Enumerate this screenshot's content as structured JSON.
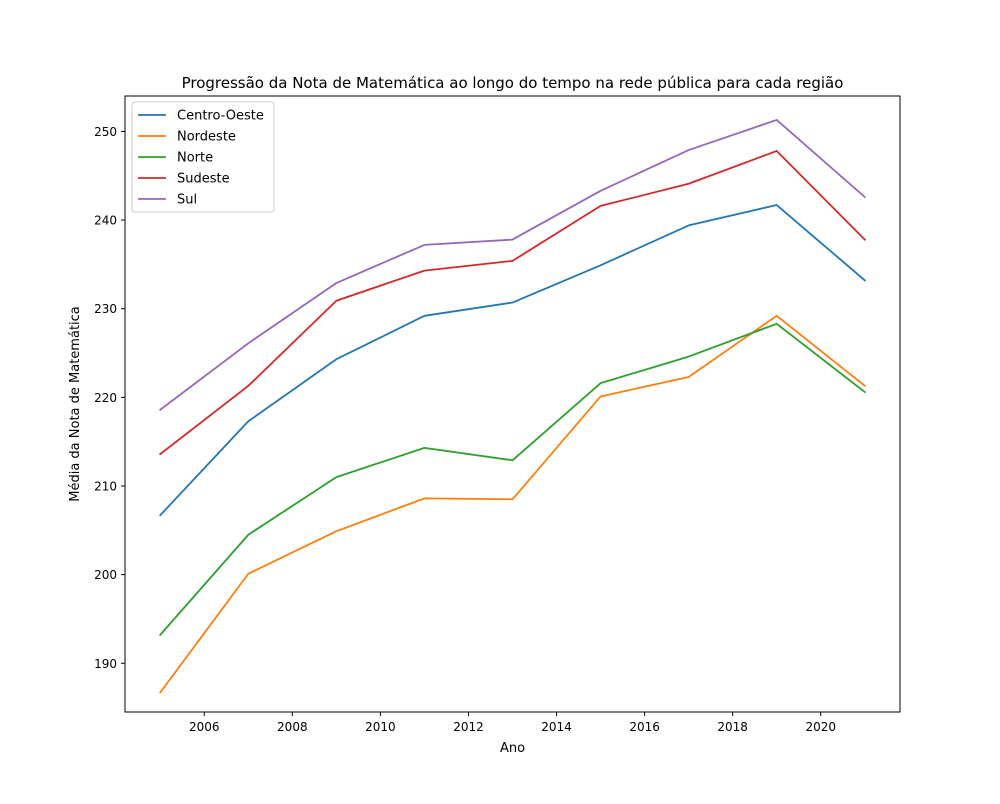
{
  "chart_data": {
    "type": "line",
    "title": "Progressão da Nota de Matemática ao longo do tempo na rede pública para cada região",
    "xlabel": "Ano",
    "ylabel": "Média da Nota de Matemática",
    "xlim": [
      2004.2,
      2021.8
    ],
    "ylim": [
      184.5,
      254.0
    ],
    "x_ticks": [
      2006,
      2008,
      2010,
      2012,
      2014,
      2016,
      2018,
      2020
    ],
    "y_ticks": [
      190,
      200,
      210,
      220,
      230,
      240,
      250
    ],
    "grid": false,
    "legend_position": "upper-left",
    "x": [
      2005,
      2007,
      2009,
      2011,
      2013,
      2015,
      2017,
      2019,
      2021
    ],
    "series": [
      {
        "name": "Centro-Oeste",
        "color": "#1f77b4",
        "values": [
          206.7,
          217.3,
          224.3,
          229.2,
          230.7,
          234.9,
          239.4,
          241.7,
          233.2
        ]
      },
      {
        "name": "Nordeste",
        "color": "#ff7f0e",
        "values": [
          186.7,
          200.1,
          204.9,
          208.6,
          208.5,
          220.1,
          222.3,
          229.2,
          221.3
        ]
      },
      {
        "name": "Norte",
        "color": "#2ca02c",
        "values": [
          193.2,
          204.5,
          211.0,
          214.3,
          212.9,
          221.6,
          224.6,
          228.3,
          220.6
        ]
      },
      {
        "name": "Sudeste",
        "color": "#d62728",
        "values": [
          213.6,
          221.3,
          230.9,
          234.3,
          235.4,
          241.6,
          244.1,
          247.8,
          237.8
        ]
      },
      {
        "name": "Sul",
        "color": "#9467bd",
        "values": [
          218.6,
          226.1,
          232.9,
          237.2,
          237.8,
          243.3,
          247.9,
          251.3,
          242.6
        ]
      }
    ]
  }
}
